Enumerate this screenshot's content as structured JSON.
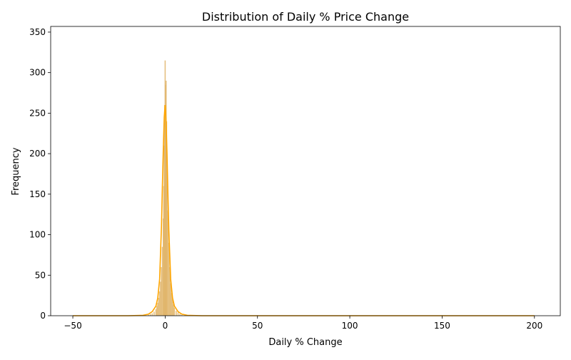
{
  "chart_data": {
    "type": "histogram",
    "title": "Distribution of Daily % Price Change",
    "xlabel": "Daily % Change",
    "ylabel": "Frequency",
    "xlim": [
      -62,
      214
    ],
    "ylim": [
      0,
      357
    ],
    "xticks": [
      -50,
      0,
      50,
      100,
      150,
      200
    ],
    "xtick_labels": [
      "−50",
      "0",
      "50",
      "100",
      "150",
      "200"
    ],
    "yticks": [
      0,
      50,
      100,
      150,
      200,
      250,
      300,
      350
    ],
    "ytick_labels": [
      "0",
      "50",
      "100",
      "150",
      "200",
      "250",
      "300",
      "350"
    ],
    "grid": false,
    "bar_color": "#e0b56b",
    "kde_color": "#ffa500",
    "bins": [
      {
        "x": -9.0,
        "y": 1
      },
      {
        "x": -8.0,
        "y": 2
      },
      {
        "x": -7.0,
        "y": 3
      },
      {
        "x": -6.0,
        "y": 5
      },
      {
        "x": -5.0,
        "y": 8
      },
      {
        "x": -4.5,
        "y": 12
      },
      {
        "x": -4.0,
        "y": 16
      },
      {
        "x": -3.5,
        "y": 22
      },
      {
        "x": -3.0,
        "y": 30
      },
      {
        "x": -2.5,
        "y": 42
      },
      {
        "x": -2.0,
        "y": 60
      },
      {
        "x": -1.5,
        "y": 85
      },
      {
        "x": -1.0,
        "y": 120
      },
      {
        "x": -0.75,
        "y": 160
      },
      {
        "x": -0.5,
        "y": 210
      },
      {
        "x": -0.25,
        "y": 260
      },
      {
        "x": 0.0,
        "y": 315
      },
      {
        "x": 0.25,
        "y": 285
      },
      {
        "x": 0.5,
        "y": 290
      },
      {
        "x": 0.75,
        "y": 240
      },
      {
        "x": 1.0,
        "y": 180
      },
      {
        "x": 1.5,
        "y": 130
      },
      {
        "x": 2.0,
        "y": 90
      },
      {
        "x": 2.5,
        "y": 60
      },
      {
        "x": 3.0,
        "y": 40
      },
      {
        "x": 3.5,
        "y": 28
      },
      {
        "x": 4.0,
        "y": 20
      },
      {
        "x": 4.5,
        "y": 14
      },
      {
        "x": 5.0,
        "y": 10
      },
      {
        "x": 6.0,
        "y": 6
      },
      {
        "x": 7.0,
        "y": 4
      },
      {
        "x": 8.0,
        "y": 2
      },
      {
        "x": 9.0,
        "y": 1
      }
    ],
    "kde": {
      "x": [
        -50,
        -20,
        -12,
        -9,
        -7,
        -5,
        -4,
        -3,
        -2,
        -1.5,
        -1,
        -0.5,
        0,
        0.5,
        1,
        1.5,
        2,
        3,
        4,
        5,
        7,
        9,
        12,
        20,
        50,
        100,
        150,
        200
      ],
      "y": [
        0,
        0,
        0.5,
        2,
        5,
        12,
        22,
        45,
        110,
        160,
        205,
        245,
        260,
        240,
        200,
        150,
        105,
        45,
        22,
        12,
        5,
        2,
        0.5,
        0,
        0,
        0,
        0,
        0
      ]
    }
  }
}
